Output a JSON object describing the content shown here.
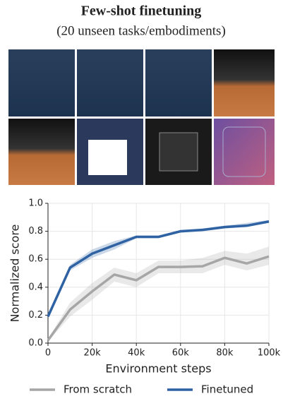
{
  "chart_data": {
    "type": "line",
    "title": "Few-shot finetuning",
    "subtitle": "(20 unseen tasks/embodiments)",
    "xlabel": "Environment steps",
    "ylabel": "Normalized score",
    "x": [
      0,
      10000,
      20000,
      30000,
      40000,
      50000,
      60000,
      70000,
      80000,
      90000,
      100000
    ],
    "series": [
      {
        "name": "From scratch",
        "color": "#a6a6a6",
        "values": [
          0.02,
          0.24,
          0.37,
          0.49,
          0.45,
          0.545,
          0.545,
          0.55,
          0.61,
          0.57,
          0.62
        ],
        "lower": [
          0.01,
          0.19,
          0.31,
          0.44,
          0.4,
          0.5,
          0.5,
          0.5,
          0.56,
          0.52,
          0.56
        ],
        "upper": [
          0.03,
          0.29,
          0.43,
          0.54,
          0.5,
          0.59,
          0.59,
          0.61,
          0.66,
          0.64,
          0.69
        ]
      },
      {
        "name": "Finetuned",
        "color": "#2e62a3",
        "values": [
          0.19,
          0.54,
          0.64,
          0.7,
          0.76,
          0.76,
          0.8,
          0.81,
          0.83,
          0.84,
          0.87
        ],
        "lower": [
          0.18,
          0.52,
          0.61,
          0.67,
          0.75,
          0.75,
          0.79,
          0.8,
          0.82,
          0.83,
          0.86
        ],
        "upper": [
          0.2,
          0.56,
          0.67,
          0.73,
          0.77,
          0.77,
          0.81,
          0.82,
          0.84,
          0.86,
          0.88
        ]
      }
    ],
    "xlim": [
      0,
      100000
    ],
    "ylim": [
      0,
      1
    ],
    "xticks": [
      0,
      {
        "value": 20000,
        "label": "20k"
      },
      {
        "value": 40000,
        "label": "40k"
      },
      {
        "value": 60000,
        "label": "60k"
      },
      {
        "value": 80000,
        "label": "80k"
      },
      {
        "value": 100000,
        "label": "100k"
      }
    ],
    "yticks": [
      {
        "value": 0,
        "label": "0.0"
      },
      0.2,
      0.4,
      0.6,
      0.8,
      {
        "value": 1,
        "label": "1.0"
      }
    ],
    "grid": true
  }
}
